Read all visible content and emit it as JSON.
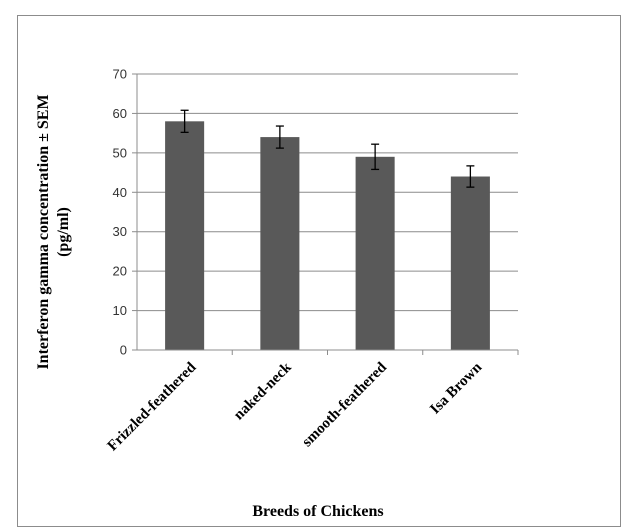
{
  "chart_data": {
    "type": "bar",
    "title": "",
    "xlabel": "Breeds of Chickens",
    "ylabel": "Interferon gamma concentration ± SEM",
    "ylabel_unit": "(pg/ml)",
    "categories": [
      "Frizzled-feathered",
      "naked-neck",
      "smooth-feathered",
      "Isa Brown"
    ],
    "series": [
      {
        "values": [
          58,
          54,
          49,
          44
        ],
        "errors": [
          2.8,
          2.8,
          3.2,
          2.7
        ]
      }
    ],
    "ylim": [
      0,
      70
    ],
    "yticks": [
      0,
      10,
      20,
      30,
      40,
      50,
      60,
      70
    ],
    "grid": true,
    "legend": "none",
    "bar_color": "#595959"
  }
}
